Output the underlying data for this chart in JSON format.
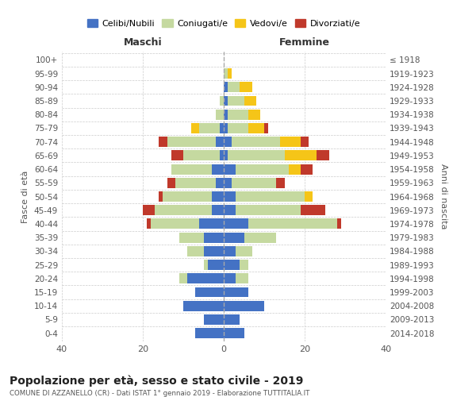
{
  "age_groups": [
    "0-4",
    "5-9",
    "10-14",
    "15-19",
    "20-24",
    "25-29",
    "30-34",
    "35-39",
    "40-44",
    "45-49",
    "50-54",
    "55-59",
    "60-64",
    "65-69",
    "70-74",
    "75-79",
    "80-84",
    "85-89",
    "90-94",
    "95-99",
    "100+"
  ],
  "birth_years": [
    "2014-2018",
    "2009-2013",
    "2004-2008",
    "1999-2003",
    "1994-1998",
    "1989-1993",
    "1984-1988",
    "1979-1983",
    "1974-1978",
    "1969-1973",
    "1964-1968",
    "1959-1963",
    "1954-1958",
    "1949-1953",
    "1944-1948",
    "1939-1943",
    "1934-1938",
    "1929-1933",
    "1924-1928",
    "1919-1923",
    "≤ 1918"
  ],
  "colors": {
    "celibi": "#4472c4",
    "coniugati": "#c5d9a0",
    "vedovi": "#f5c518",
    "divorziati": "#c0392b"
  },
  "maschi": {
    "celibi": [
      7,
      5,
      10,
      7,
      9,
      4,
      5,
      5,
      6,
      3,
      3,
      2,
      3,
      1,
      2,
      1,
      0,
      0,
      0,
      0,
      0
    ],
    "coniugati": [
      0,
      0,
      0,
      0,
      2,
      1,
      4,
      6,
      12,
      14,
      12,
      10,
      10,
      9,
      12,
      5,
      2,
      1,
      0,
      0,
      0
    ],
    "vedovi": [
      0,
      0,
      0,
      0,
      0,
      0,
      0,
      0,
      0,
      0,
      0,
      0,
      0,
      0,
      0,
      2,
      0,
      0,
      0,
      0,
      0
    ],
    "divorziati": [
      0,
      0,
      0,
      0,
      0,
      0,
      0,
      0,
      1,
      3,
      1,
      2,
      0,
      3,
      2,
      0,
      0,
      0,
      0,
      0,
      0
    ]
  },
  "femmine": {
    "celibi": [
      5,
      4,
      10,
      6,
      3,
      4,
      3,
      5,
      6,
      3,
      3,
      2,
      3,
      1,
      2,
      1,
      1,
      1,
      1,
      0,
      0
    ],
    "coniugati": [
      0,
      0,
      0,
      0,
      3,
      2,
      4,
      8,
      22,
      16,
      17,
      11,
      13,
      14,
      12,
      5,
      5,
      4,
      3,
      1,
      0
    ],
    "vedovi": [
      0,
      0,
      0,
      0,
      0,
      0,
      0,
      0,
      0,
      0,
      2,
      0,
      3,
      8,
      5,
      4,
      3,
      3,
      3,
      1,
      0
    ],
    "divorziati": [
      0,
      0,
      0,
      0,
      0,
      0,
      0,
      0,
      1,
      6,
      0,
      2,
      3,
      3,
      2,
      1,
      0,
      0,
      0,
      0,
      0
    ]
  },
  "xlim": 40,
  "title": "Popolazione per età, sesso e stato civile - 2019",
  "subtitle": "COMUNE DI AZZANELLO (CR) - Dati ISTAT 1° gennaio 2019 - Elaborazione TUTTITALIA.IT",
  "ylabel_left": "Fasce di età",
  "ylabel_right": "Anni di nascita",
  "xlabel_left": "Maschi",
  "xlabel_right": "Femmine",
  "legend_labels": [
    "Celibi/Nubili",
    "Coniugati/e",
    "Vedovi/e",
    "Divorziati/e"
  ],
  "background_color": "#ffffff"
}
